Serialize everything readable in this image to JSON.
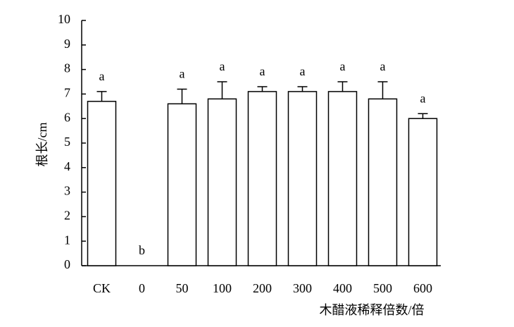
{
  "chart_data": {
    "type": "bar",
    "x_label": "木醋液稀释倍数/倍",
    "y_label": "根长/cm",
    "categories": [
      "CK",
      "0",
      "50",
      "100",
      "200",
      "300",
      "400",
      "500",
      "600"
    ],
    "values": [
      6.7,
      0,
      6.6,
      6.8,
      7.1,
      7.1,
      7.1,
      6.8,
      6.0
    ],
    "errors": [
      0.4,
      0,
      0.6,
      0.7,
      0.2,
      0.2,
      0.4,
      0.7,
      0.2
    ],
    "letters": [
      "a",
      "b",
      "a",
      "a",
      "a",
      "a",
      "a",
      "a",
      "a"
    ],
    "color": "#ffffff",
    "ylim": [
      0,
      10
    ],
    "yticks": [
      0,
      1,
      2,
      3,
      4,
      5,
      6,
      7,
      8,
      9,
      10
    ]
  }
}
